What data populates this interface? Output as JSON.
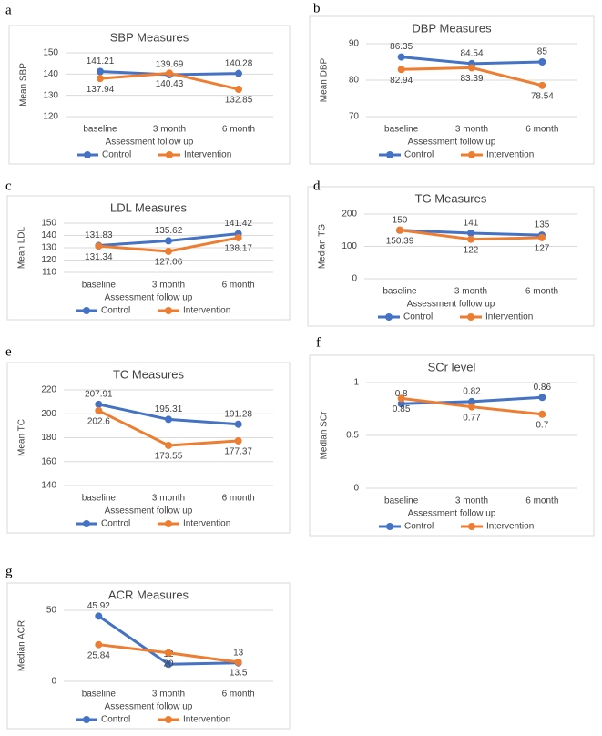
{
  "chart_data": [
    {
      "type": "line",
      "panel": "a",
      "title": "SBP Measures",
      "y_label": "Mean SBP",
      "x_label": "Assessment follow up",
      "categories": [
        "baseline",
        "3 month",
        "6 month"
      ],
      "ylim": [
        120,
        150
      ],
      "yticks": [
        120,
        130,
        140,
        150
      ],
      "grid": true,
      "series": [
        {
          "name": "Control",
          "color": "#4472c4",
          "values": [
            141.21,
            139.69,
            140.28
          ]
        },
        {
          "name": "Intervention",
          "color": "#ed7d31",
          "values": [
            137.94,
            140.43,
            132.85
          ]
        }
      ]
    },
    {
      "type": "line",
      "panel": "b",
      "title": "DBP Measures",
      "y_label": "Mean DBP",
      "x_label": "Assessment follow up",
      "categories": [
        "baseline",
        "3 month",
        "6 month"
      ],
      "ylim": [
        70,
        90
      ],
      "yticks": [
        70,
        80,
        90
      ],
      "grid": true,
      "series": [
        {
          "name": "Control",
          "color": "#4472c4",
          "values": [
            86.35,
            84.54,
            85
          ]
        },
        {
          "name": "Intervention",
          "color": "#ed7d31",
          "values": [
            82.94,
            83.39,
            78.54
          ]
        }
      ]
    },
    {
      "type": "line",
      "panel": "c",
      "title": "LDL Measures",
      "y_label": "Mean LDL",
      "x_label": "Assessment follow up",
      "categories": [
        "baseline",
        "3 month",
        "6 month"
      ],
      "ylim": [
        110,
        150
      ],
      "yticks": [
        110,
        120,
        130,
        140,
        150
      ],
      "grid": true,
      "series": [
        {
          "name": "Control",
          "color": "#4472c4",
          "values": [
            131.83,
            135.62,
            141.42
          ]
        },
        {
          "name": "Intervention",
          "color": "#ed7d31",
          "values": [
            131.34,
            127.06,
            138.17
          ]
        }
      ]
    },
    {
      "type": "line",
      "panel": "d",
      "title": "TG Measures",
      "y_label": "Median TG",
      "x_label": "Assessment follow up",
      "categories": [
        "baseline",
        "3 month",
        "6 month"
      ],
      "ylim": [
        0,
        200
      ],
      "yticks": [
        0,
        100,
        200
      ],
      "grid": true,
      "series": [
        {
          "name": "Control",
          "color": "#4472c4",
          "values": [
            150,
            141,
            135
          ]
        },
        {
          "name": "Intervention",
          "color": "#ed7d31",
          "values": [
            150.39,
            122,
            127
          ]
        }
      ]
    },
    {
      "type": "line",
      "panel": "e",
      "title": "TC Measures",
      "y_label": "Mean TC",
      "x_label": "Assessment follow up",
      "categories": [
        "baseline",
        "3 month",
        "6 month"
      ],
      "ylim": [
        140,
        220
      ],
      "yticks": [
        140,
        160,
        180,
        200,
        220
      ],
      "grid": true,
      "series": [
        {
          "name": "Control",
          "color": "#4472c4",
          "values": [
            207.91,
            195.31,
            191.28
          ]
        },
        {
          "name": "Intervention",
          "color": "#ed7d31",
          "values": [
            202.6,
            173.55,
            177.37
          ]
        }
      ]
    },
    {
      "type": "line",
      "panel": "f",
      "title": "SCr level",
      "y_label": "Median SCr",
      "x_label": "Assessment follow up",
      "categories": [
        "baseline",
        "3 month",
        "6 month"
      ],
      "ylim": [
        0,
        1
      ],
      "yticks": [
        0,
        0.5,
        1
      ],
      "grid": true,
      "series": [
        {
          "name": "Control",
          "color": "#4472c4",
          "values": [
            0.8,
            0.82,
            0.86
          ]
        },
        {
          "name": "Intervention",
          "color": "#ed7d31",
          "values": [
            0.85,
            0.77,
            0.7
          ]
        }
      ]
    },
    {
      "type": "line",
      "panel": "g",
      "title": "ACR Measures",
      "y_label": "Median ACR",
      "x_label": "Assessment follow up",
      "categories": [
        "baseline",
        "3 month",
        "6 month"
      ],
      "ylim": [
        0,
        50
      ],
      "yticks": [
        0,
        50
      ],
      "grid": true,
      "series": [
        {
          "name": "Control",
          "color": "#4472c4",
          "values": [
            45.92,
            12,
            13
          ]
        },
        {
          "name": "Intervention",
          "color": "#ed7d31",
          "values": [
            25.84,
            20,
            13.5
          ]
        }
      ]
    }
  ]
}
